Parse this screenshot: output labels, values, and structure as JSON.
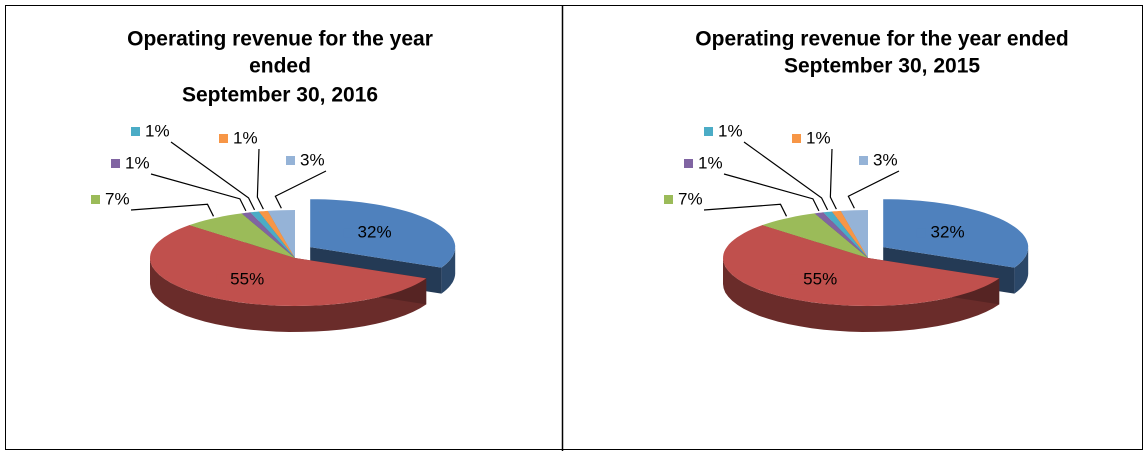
{
  "chart_data": [
    {
      "type": "pie3d",
      "title": [
        "Operating revenue for the year",
        "ended",
        "September 30,  2016"
      ],
      "values": [
        32,
        55,
        7,
        1,
        1,
        1,
        3
      ],
      "value_labels": [
        "32%",
        "55%",
        "7%",
        "1%",
        "1%",
        "1%",
        "3%"
      ],
      "colors": [
        "#4f81bd",
        "#c0504d",
        "#9bbb59",
        "#8064a2",
        "#4bacc6",
        "#f79646",
        "#95b3d7"
      ]
    },
    {
      "type": "pie3d",
      "title": [
        "Operating revenue for the year ended",
        "September 30, 2015"
      ],
      "values": [
        32,
        55,
        7,
        1,
        1,
        1,
        3
      ],
      "value_labels": [
        "32%",
        "55%",
        "7%",
        "1%",
        "1%",
        "1%",
        "3%"
      ],
      "colors": [
        "#4f81bd",
        "#c0504d",
        "#9bbb59",
        "#8064a2",
        "#4bacc6",
        "#f79646",
        "#95b3d7"
      ]
    }
  ]
}
